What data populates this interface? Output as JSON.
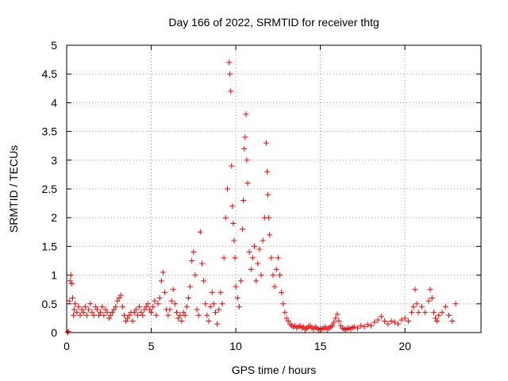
{
  "chart_data": {
    "type": "scatter",
    "title": "Day 166 of 2022, SRMTID for receiver thtg",
    "xlabel": "GPS time / hours",
    "ylabel": "SRMTID / TECUs",
    "xlim": [
      0,
      24.5
    ],
    "ylim": [
      0,
      5
    ],
    "x_ticks": [
      0,
      5,
      10,
      15,
      20
    ],
    "y_ticks": [
      0,
      0.5,
      1,
      1.5,
      2,
      2.5,
      3,
      3.5,
      4,
      4.5,
      5
    ],
    "x_tick_labels": [
      "0",
      "5",
      "10",
      "15",
      "20"
    ],
    "y_tick_labels": [
      "0",
      "0.5",
      "1",
      "1.5",
      "2",
      "2.5",
      "3",
      "3.5",
      "4",
      "4.5",
      "5"
    ],
    "grid": true,
    "marker": "plus",
    "color": "#ff0000",
    "series": [
      {
        "name": "SRMTID",
        "points": [
          [
            0.05,
            0.0
          ],
          [
            0.1,
            0.02
          ],
          [
            0.15,
            0.55
          ],
          [
            0.2,
            0.9
          ],
          [
            0.25,
            1.0
          ],
          [
            0.3,
            0.85
          ],
          [
            0.35,
            0.6
          ],
          [
            0.4,
            0.3
          ],
          [
            0.45,
            0.4
          ],
          [
            0.5,
            0.5
          ],
          [
            0.6,
            0.35
          ],
          [
            0.7,
            0.45
          ],
          [
            0.8,
            0.3
          ],
          [
            0.9,
            0.4
          ],
          [
            1.0,
            0.35
          ],
          [
            1.1,
            0.45
          ],
          [
            1.2,
            0.3
          ],
          [
            1.3,
            0.4
          ],
          [
            1.4,
            0.5
          ],
          [
            1.5,
            0.35
          ],
          [
            1.6,
            0.3
          ],
          [
            1.7,
            0.45
          ],
          [
            1.8,
            0.4
          ],
          [
            1.9,
            0.3
          ],
          [
            2.0,
            0.35
          ],
          [
            2.1,
            0.45
          ],
          [
            2.2,
            0.3
          ],
          [
            2.3,
            0.4
          ],
          [
            2.4,
            0.35
          ],
          [
            2.5,
            0.25
          ],
          [
            2.6,
            0.3
          ],
          [
            2.7,
            0.35
          ],
          [
            2.8,
            0.4
          ],
          [
            2.9,
            0.45
          ],
          [
            3.0,
            0.55
          ],
          [
            3.1,
            0.6
          ],
          [
            3.2,
            0.65
          ],
          [
            3.3,
            0.45
          ],
          [
            3.4,
            0.3
          ],
          [
            3.5,
            0.2
          ],
          [
            3.6,
            0.25
          ],
          [
            3.7,
            0.3
          ],
          [
            3.8,
            0.35
          ],
          [
            3.9,
            0.2
          ],
          [
            4.0,
            0.35
          ],
          [
            4.1,
            0.4
          ],
          [
            4.2,
            0.3
          ],
          [
            4.3,
            0.45
          ],
          [
            4.4,
            0.35
          ],
          [
            4.5,
            0.3
          ],
          [
            4.6,
            0.4
          ],
          [
            4.7,
            0.45
          ],
          [
            4.8,
            0.5
          ],
          [
            4.9,
            0.4
          ],
          [
            5.0,
            0.35
          ],
          [
            5.1,
            0.45
          ],
          [
            5.2,
            0.55
          ],
          [
            5.3,
            0.3
          ],
          [
            5.4,
            0.5
          ],
          [
            5.5,
            0.6
          ],
          [
            5.6,
            0.9
          ],
          [
            5.7,
            1.05
          ],
          [
            5.8,
            0.7
          ],
          [
            5.9,
            0.4
          ],
          [
            6.0,
            0.3
          ],
          [
            6.1,
            0.4
          ],
          [
            6.2,
            0.55
          ],
          [
            6.3,
            0.75
          ],
          [
            6.4,
            0.5
          ],
          [
            6.5,
            0.35
          ],
          [
            6.6,
            0.25
          ],
          [
            6.7,
            0.3
          ],
          [
            6.8,
            0.2
          ],
          [
            6.9,
            0.35
          ],
          [
            7.0,
            0.3
          ],
          [
            7.1,
            0.45
          ],
          [
            7.2,
            0.6
          ],
          [
            7.3,
            0.8
          ],
          [
            7.4,
            1.25
          ],
          [
            7.5,
            1.4
          ],
          [
            7.6,
            1.0
          ],
          [
            7.7,
            0.4
          ],
          [
            7.8,
            0.3
          ],
          [
            7.9,
            1.75
          ],
          [
            8.0,
            1.2
          ],
          [
            8.1,
            0.9
          ],
          [
            8.2,
            0.5
          ],
          [
            8.3,
            0.3
          ],
          [
            8.4,
            0.2
          ],
          [
            8.5,
            0.45
          ],
          [
            8.6,
            0.7
          ],
          [
            8.7,
            0.5
          ],
          [
            8.8,
            0.35
          ],
          [
            8.9,
            0.15
          ],
          [
            9.0,
            0.4
          ],
          [
            9.1,
            0.7
          ],
          [
            9.2,
            0.5
          ],
          [
            9.3,
            1.3
          ],
          [
            9.4,
            2.0
          ],
          [
            9.5,
            2.5
          ],
          [
            9.6,
            4.7
          ],
          [
            9.65,
            4.5
          ],
          [
            9.7,
            4.2
          ],
          [
            9.75,
            2.9
          ],
          [
            9.8,
            2.2
          ],
          [
            9.85,
            1.9
          ],
          [
            9.9,
            1.6
          ],
          [
            9.95,
            1.3
          ],
          [
            10.0,
            0.8
          ],
          [
            10.1,
            0.6
          ],
          [
            10.2,
            0.45
          ],
          [
            10.3,
            0.9
          ],
          [
            10.4,
            1.8
          ],
          [
            10.45,
            2.3
          ],
          [
            10.5,
            3.2
          ],
          [
            10.55,
            3.4
          ],
          [
            10.6,
            3.8
          ],
          [
            10.65,
            3.0
          ],
          [
            10.7,
            2.6
          ],
          [
            10.8,
            1.4
          ],
          [
            10.9,
            1.1
          ],
          [
            11.0,
            1.3
          ],
          [
            11.1,
            1.5
          ],
          [
            11.2,
            0.9
          ],
          [
            11.3,
            1.2
          ],
          [
            11.4,
            1.45
          ],
          [
            11.5,
            1.0
          ],
          [
            11.6,
            1.6
          ],
          [
            11.7,
            2.0
          ],
          [
            11.8,
            3.3
          ],
          [
            11.85,
            2.8
          ],
          [
            11.9,
            2.4
          ],
          [
            11.95,
            2.0
          ],
          [
            12.0,
            1.7
          ],
          [
            12.1,
            1.3
          ],
          [
            12.2,
            1.0
          ],
          [
            12.3,
            0.8
          ],
          [
            12.4,
            1.1
          ],
          [
            12.5,
            1.3
          ],
          [
            12.6,
            1.0
          ],
          [
            12.7,
            0.7
          ],
          [
            12.8,
            0.5
          ],
          [
            12.9,
            0.35
          ],
          [
            13.0,
            0.25
          ],
          [
            13.1,
            0.2
          ],
          [
            13.2,
            0.15
          ],
          [
            13.3,
            0.12
          ],
          [
            13.4,
            0.1
          ],
          [
            13.5,
            0.12
          ],
          [
            13.6,
            0.08
          ],
          [
            13.7,
            0.1
          ],
          [
            13.8,
            0.12
          ],
          [
            13.9,
            0.08
          ],
          [
            14.0,
            0.1
          ],
          [
            14.1,
            0.05
          ],
          [
            14.2,
            0.08
          ],
          [
            14.3,
            0.1
          ],
          [
            14.4,
            0.12
          ],
          [
            14.5,
            0.08
          ],
          [
            14.6,
            0.06
          ],
          [
            14.7,
            0.1
          ],
          [
            14.8,
            0.08
          ],
          [
            14.9,
            0.05
          ],
          [
            15.0,
            0.07
          ],
          [
            15.1,
            0.06
          ],
          [
            15.2,
            0.08
          ],
          [
            15.3,
            0.1
          ],
          [
            15.4,
            0.05
          ],
          [
            15.5,
            0.08
          ],
          [
            15.6,
            0.1
          ],
          [
            15.7,
            0.12
          ],
          [
            15.8,
            0.18
          ],
          [
            15.9,
            0.25
          ],
          [
            16.0,
            0.32
          ],
          [
            16.1,
            0.2
          ],
          [
            16.2,
            0.12
          ],
          [
            16.3,
            0.08
          ],
          [
            16.4,
            0.06
          ],
          [
            16.5,
            0.05
          ],
          [
            16.6,
            0.07
          ],
          [
            16.7,
            0.08
          ],
          [
            16.8,
            0.06
          ],
          [
            16.9,
            0.09
          ],
          [
            17.0,
            0.1
          ],
          [
            17.2,
            0.08
          ],
          [
            17.4,
            0.12
          ],
          [
            17.6,
            0.1
          ],
          [
            17.8,
            0.14
          ],
          [
            18.0,
            0.12
          ],
          [
            18.2,
            0.18
          ],
          [
            18.4,
            0.22
          ],
          [
            18.6,
            0.28
          ],
          [
            18.8,
            0.2
          ],
          [
            19.0,
            0.15
          ],
          [
            19.2,
            0.2
          ],
          [
            19.4,
            0.18
          ],
          [
            19.6,
            0.15
          ],
          [
            19.8,
            0.22
          ],
          [
            20.0,
            0.25
          ],
          [
            20.2,
            0.2
          ],
          [
            20.4,
            0.35
          ],
          [
            20.5,
            0.45
          ],
          [
            20.6,
            0.75
          ],
          [
            20.7,
            0.5
          ],
          [
            20.8,
            0.35
          ],
          [
            21.0,
            0.45
          ],
          [
            21.2,
            0.35
          ],
          [
            21.4,
            0.55
          ],
          [
            21.5,
            0.75
          ],
          [
            21.6,
            0.6
          ],
          [
            21.7,
            0.35
          ],
          [
            21.8,
            0.25
          ],
          [
            21.9,
            0.2
          ],
          [
            22.0,
            0.3
          ],
          [
            22.2,
            0.35
          ],
          [
            22.4,
            0.45
          ],
          [
            22.6,
            0.3
          ],
          [
            22.8,
            0.2
          ],
          [
            23.0,
            0.5
          ]
        ]
      }
    ]
  }
}
